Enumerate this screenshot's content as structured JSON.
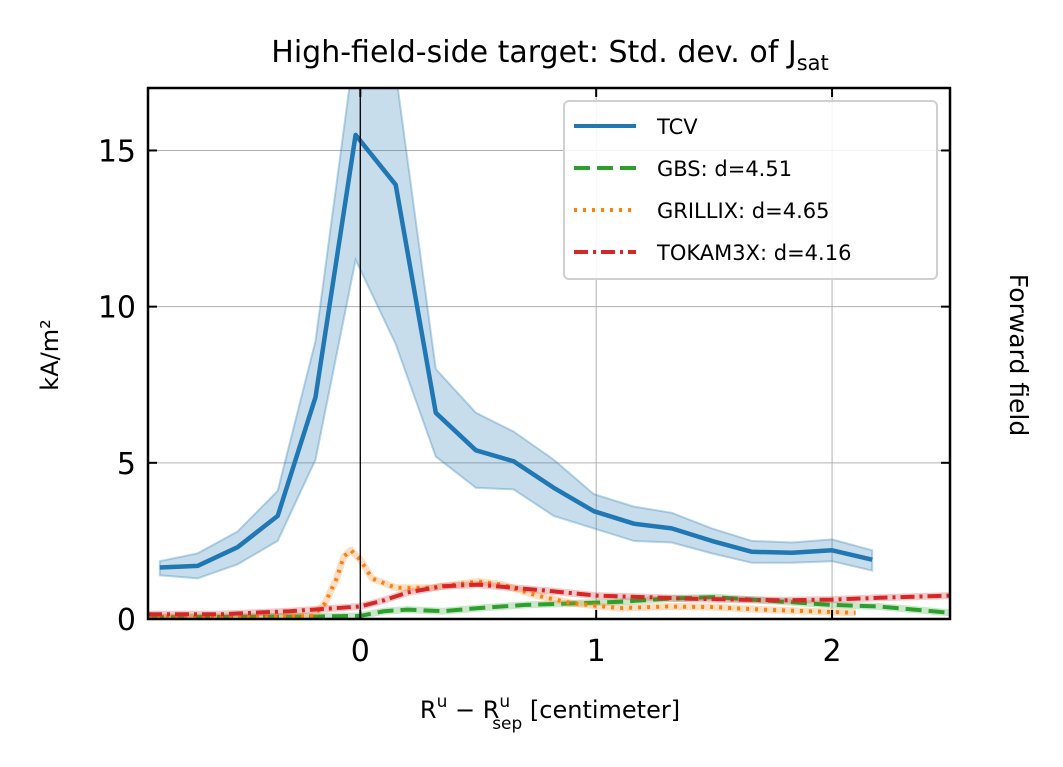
{
  "chart_data": {
    "type": "line",
    "title": {
      "main": "High-field-side target: Std. dev. of J",
      "sub": "sat"
    },
    "xlabel": {
      "base": "R",
      "sup1": "u",
      "minus": " − R",
      "sup2": "u",
      "sub2": "sep",
      "unit": " [centimeter]"
    },
    "ylabel": "kA/m²",
    "side_label": "Forward field",
    "xlim": [
      -0.9,
      2.5
    ],
    "ylim": [
      0,
      17
    ],
    "xticks": [
      {
        "v": 0,
        "label": "0"
      },
      {
        "v": 1,
        "label": "1"
      },
      {
        "v": 2,
        "label": "2"
      }
    ],
    "yticks": [
      {
        "v": 0,
        "label": "0"
      },
      {
        "v": 5,
        "label": "5"
      },
      {
        "v": 10,
        "label": "10"
      },
      {
        "v": 15,
        "label": "15"
      }
    ],
    "vline_x": 0,
    "grid": true,
    "legend_position": "top-right",
    "series": [
      {
        "name": "TCV",
        "color": "#1f77b4",
        "dash": "solid",
        "x": [
          -0.85,
          -0.69,
          -0.52,
          -0.35,
          -0.19,
          -0.02,
          0.15,
          0.32,
          0.49,
          0.65,
          0.82,
          0.99,
          1.16,
          1.32,
          1.49,
          1.66,
          1.83,
          2.0,
          2.17
        ],
        "y": [
          1.65,
          1.7,
          2.3,
          3.3,
          7.1,
          15.5,
          13.9,
          6.6,
          5.4,
          5.05,
          4.2,
          3.45,
          3.05,
          2.9,
          2.5,
          2.15,
          2.12,
          2.2,
          1.9
        ],
        "band_upper": [
          1.85,
          2.1,
          2.8,
          4.1,
          8.9,
          18.5,
          17.5,
          8.0,
          6.6,
          6.0,
          5.1,
          4.0,
          3.6,
          3.4,
          2.9,
          2.5,
          2.45,
          2.55,
          2.2
        ],
        "band_lower": [
          1.4,
          1.3,
          1.75,
          2.5,
          5.1,
          11.5,
          8.8,
          5.2,
          4.2,
          4.15,
          3.3,
          2.9,
          2.5,
          2.45,
          2.1,
          1.8,
          1.8,
          1.85,
          1.55
        ]
      },
      {
        "name": "GBS: d=4.51",
        "color": "#2ca02c",
        "dash": "dashed",
        "x": [
          -0.9,
          -0.5,
          -0.2,
          0.0,
          0.1,
          0.2,
          0.35,
          0.5,
          0.7,
          0.9,
          1.1,
          1.3,
          1.5,
          1.8,
          2.0,
          2.2,
          2.5
        ],
        "y": [
          0.05,
          0.07,
          0.08,
          0.1,
          0.25,
          0.3,
          0.25,
          0.35,
          0.45,
          0.5,
          0.55,
          0.65,
          0.7,
          0.55,
          0.45,
          0.4,
          0.2
        ]
      },
      {
        "name": "GRILLIX: d=4.65",
        "color": "#ff7f0e",
        "dash": "dotted",
        "x": [
          -0.9,
          -0.5,
          -0.2,
          -0.15,
          -0.1,
          -0.07,
          -0.04,
          0.0,
          0.05,
          0.15,
          0.3,
          0.5,
          0.6,
          0.75,
          0.9,
          1.1,
          1.3,
          1.5,
          1.7,
          1.9,
          2.1
        ],
        "y": [
          0.05,
          0.05,
          0.1,
          0.5,
          1.3,
          2.0,
          2.2,
          1.9,
          1.3,
          1.0,
          1.0,
          1.2,
          1.1,
          0.75,
          0.5,
          0.35,
          0.4,
          0.38,
          0.3,
          0.25,
          0.2
        ]
      },
      {
        "name": "TOKAM3X: d=4.16",
        "color": "#d62728",
        "dash": "dashdot",
        "x": [
          -0.9,
          -0.6,
          -0.3,
          0.0,
          0.1,
          0.2,
          0.35,
          0.5,
          0.65,
          0.8,
          1.0,
          1.2,
          1.4,
          1.6,
          1.8,
          2.0,
          2.2,
          2.5
        ],
        "y": [
          0.15,
          0.15,
          0.25,
          0.4,
          0.6,
          0.85,
          1.05,
          1.1,
          1.0,
          0.9,
          0.75,
          0.7,
          0.65,
          0.62,
          0.6,
          0.62,
          0.68,
          0.75
        ]
      }
    ]
  }
}
